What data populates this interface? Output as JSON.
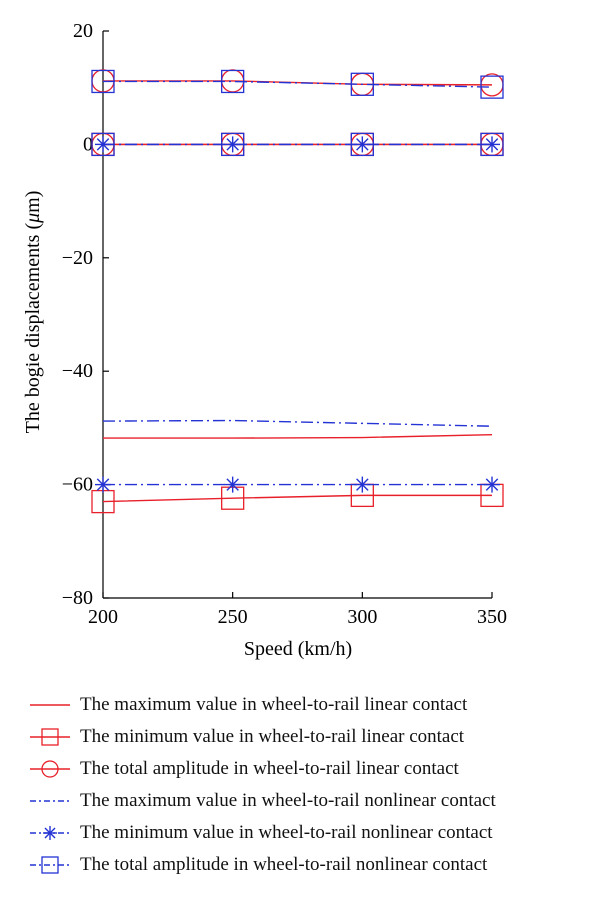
{
  "chart_data": {
    "type": "line",
    "xlabel": "Speed (km/h)",
    "ylabel_prefix": "The bogie displacements (",
    "ylabel_unit_greek": "μ",
    "ylabel_suffix": "m)",
    "xlim": [
      200,
      350
    ],
    "ylim": [
      -80,
      20
    ],
    "x_ticks": [
      200,
      250,
      300,
      350
    ],
    "y_ticks": [
      20,
      0,
      -20,
      -40,
      -60,
      -80
    ],
    "y_tick_labels": [
      "20",
      "0",
      "−20",
      "−40",
      "−60",
      "−80"
    ],
    "x": [
      200,
      250,
      300,
      350
    ],
    "grid": false,
    "legend_position": "bottom",
    "series": [
      {
        "name": "The maximum value in wheel-to-rail linear contact",
        "color": "#e8202a",
        "line": "solid",
        "marker": "none",
        "values": [
          -51.8,
          -51.8,
          -51.7,
          -51.2
        ]
      },
      {
        "name": "The minimum value in wheel-to-rail linear contact",
        "color": "#e8202a",
        "line": "solid",
        "marker": "square",
        "values": [
          -63.0,
          -62.4,
          -61.9,
          -61.9
        ]
      },
      {
        "name": "The total amplitude in wheel-to-rail linear contact",
        "color": "#e8202a",
        "line": "solid",
        "marker": "circle",
        "values": [
          11.2,
          11.2,
          10.6,
          10.5
        ]
      },
      {
        "name": "The maximum value in wheel-to-rail nonlinear contact",
        "color": "#2433d4",
        "line": "dashdot",
        "marker": "none",
        "values": [
          -48.8,
          -48.7,
          -49.2,
          -49.7
        ]
      },
      {
        "name": "The minimum value in wheel-to-rail nonlinear contact",
        "color": "#2433d4",
        "line": "dashdot",
        "marker": "asterisk",
        "values": [
          -60.0,
          -60.0,
          -60.0,
          -60.0
        ]
      },
      {
        "name": "The total amplitude in wheel-to-rail nonlinear contact",
        "color": "#2433d4",
        "line": "dashdot",
        "marker": "square",
        "values": [
          11.1,
          11.1,
          10.6,
          10.1
        ]
      }
    ],
    "overlay_zero_series": [
      {
        "color": "#e8202a",
        "line": "solid",
        "marker": "square",
        "values": [
          0,
          0,
          0,
          0
        ]
      },
      {
        "color": "#e8202a",
        "line": "solid",
        "marker": "circle",
        "values": [
          0,
          0,
          0,
          0
        ]
      },
      {
        "color": "#2433d4",
        "line": "dashdot",
        "marker": "square",
        "values": [
          0,
          0,
          0,
          0
        ]
      },
      {
        "color": "#2433d4",
        "line": "dashdot",
        "marker": "asterisk",
        "values": [
          0,
          0,
          0,
          0
        ]
      }
    ]
  }
}
